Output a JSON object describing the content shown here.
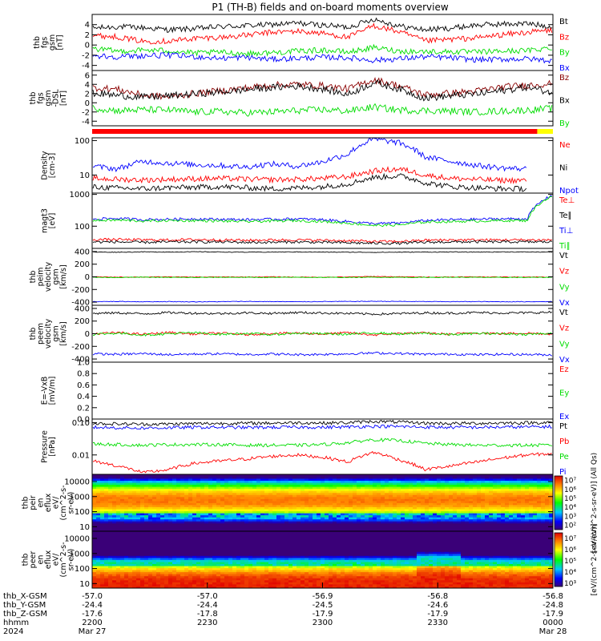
{
  "title": "P1 (TH-B) fields and on-board moments overview",
  "chart_data": [
    {
      "type": "line",
      "panel": "fgs",
      "ylabel": [
        "thb",
        "fgs",
        "gsm",
        "[nT]"
      ],
      "ylim": [
        -5,
        6
      ],
      "ticks": [
        "4",
        "2",
        "0",
        "-2",
        "-4"
      ],
      "tick_values": [
        4,
        2,
        0,
        -2,
        -4
      ],
      "series": [
        {
          "name": "Bt",
          "color": "#000000",
          "values": [
            3.3,
            3.6,
            3.4,
            3.0,
            3.2,
            3.6,
            3.8,
            4.0,
            4.3,
            3.9,
            3.5,
            5.1,
            3.7,
            3.0,
            3.3,
            3.9,
            4.1,
            4.2,
            3.6
          ]
        },
        {
          "name": "Bz",
          "color": "#ff0000",
          "values": [
            1.9,
            1.6,
            0.7,
            0.8,
            1.3,
            1.5,
            1.9,
            2.5,
            2.7,
            2.3,
            1.5,
            3.8,
            2.6,
            0.8,
            1.1,
            1.4,
            2.0,
            2.5,
            2.9
          ]
        },
        {
          "name": "By",
          "color": "#00dd00",
          "values": [
            -0.7,
            -1.2,
            -1.0,
            -1.1,
            -1.6,
            -1.4,
            -1.7,
            -1.5,
            -1.2,
            -1.0,
            -1.4,
            -0.5,
            -1.2,
            -1.3,
            -1.3,
            -1.4,
            -1.2,
            -1.1,
            -0.5
          ]
        },
        {
          "name": "Bx",
          "color": "#0000ff",
          "values": [
            -2.1,
            -2.3,
            -2.1,
            -2.0,
            -2.3,
            -2.6,
            -2.4,
            -2.8,
            -2.6,
            -2.4,
            -2.5,
            -3.0,
            -2.7,
            -2.3,
            -2.5,
            -2.9,
            -2.8,
            -2.7,
            -3.1
          ]
        }
      ]
    },
    {
      "type": "line",
      "panel": "fgs-dsl",
      "ylabel": [
        "thb",
        "fgs",
        "gsm",
        "-DSL",
        "[nT]"
      ],
      "ylim": [
        -5,
        7
      ],
      "ticks": [
        "6",
        "4",
        "2",
        "0",
        "-2",
        "-4"
      ],
      "tick_values": [
        6,
        4,
        2,
        0,
        -2,
        -4
      ],
      "series": [
        {
          "name": "Bz",
          "color": "#8b0000",
          "values": [
            3.3,
            2.9,
            1.6,
            1.3,
            2.0,
            2.6,
            3.2,
            3.8,
            4.0,
            3.7,
            3.0,
            5.0,
            3.7,
            1.7,
            2.1,
            2.5,
            3.4,
            3.8,
            4.2
          ]
        },
        {
          "name": "Bx",
          "color": "#000000",
          "values": [
            2.1,
            1.6,
            1.2,
            1.5,
            1.9,
            2.3,
            2.8,
            3.3,
            3.6,
            3.0,
            1.8,
            4.4,
            3.0,
            1.0,
            1.5,
            1.9,
            2.6,
            3.4,
            2.2
          ]
        },
        {
          "name": "By",
          "color": "#00dd00",
          "values": [
            -1.1,
            -1.7,
            -1.5,
            -1.6,
            -2.0,
            -1.9,
            -2.2,
            -2.0,
            -1.7,
            -1.5,
            -1.8,
            -0.9,
            -1.6,
            -1.7,
            -1.8,
            -2.0,
            -1.8,
            -1.6,
            -1.2
          ]
        }
      ]
    },
    {
      "type": "line",
      "panel": "density",
      "ylabel": [
        "Density",
        "[cm-3]"
      ],
      "scale": "log",
      "ylim": [
        3,
        120
      ],
      "ticks": [
        "100",
        "10"
      ],
      "tick_values": [
        100,
        10
      ],
      "series": [
        {
          "name": "Ne",
          "color": "#ff0000",
          "values": [
            8.0,
            7.5,
            7.2,
            7.5,
            7.8,
            8.0,
            7.6,
            7.3,
            7.5,
            8.0,
            9.0,
            13.0,
            15.0,
            10.0,
            8.0,
            7.5,
            7.0,
            7.0,
            null
          ]
        },
        {
          "name": "Ni",
          "color": "#000000",
          "values": [
            4.5,
            4.2,
            4.0,
            4.3,
            4.4,
            4.6,
            4.3,
            4.0,
            4.2,
            4.6,
            5.5,
            8.5,
            9.5,
            6.0,
            4.6,
            4.3,
            4.0,
            4.0,
            null
          ]
        },
        {
          "name": "Npot",
          "color": "#0000ff",
          "values": [
            18,
            15,
            25,
            22,
            20,
            19,
            17,
            21,
            18,
            24,
            40,
            110,
            85,
            33,
            25,
            19,
            16,
            15,
            null
          ]
        }
      ]
    },
    {
      "type": "line",
      "panel": "temperature",
      "ylabel": [
        "magt3",
        "[eV]"
      ],
      "scale": "log",
      "ylim": [
        20,
        1100
      ],
      "ticks": [
        "1000",
        "100"
      ],
      "tick_values": [
        1000,
        100
      ],
      "series": [
        {
          "name": "Te⊥",
          "color": "#ff0000",
          "values": [
            38,
            38,
            37,
            37,
            38,
            37,
            36,
            37,
            37,
            36,
            35,
            33,
            33,
            36,
            37,
            37,
            37,
            37,
            37
          ]
        },
        {
          "name": "Te∥",
          "color": "#000000",
          "values": [
            32,
            32,
            31,
            32,
            32,
            32,
            31,
            31,
            32,
            31,
            30,
            29,
            29,
            31,
            32,
            32,
            32,
            32,
            32
          ]
        },
        {
          "name": "Ti⊥",
          "color": "#0000ff",
          "values": [
            170,
            175,
            160,
            165,
            170,
            165,
            160,
            165,
            170,
            160,
            140,
            120,
            125,
            150,
            160,
            165,
            170,
            170,
            950
          ]
        },
        {
          "name": "Ti∥",
          "color": "#00dd00",
          "values": [
            150,
            155,
            145,
            150,
            150,
            145,
            140,
            145,
            150,
            140,
            125,
            105,
            110,
            135,
            140,
            145,
            150,
            150,
            900
          ]
        }
      ]
    },
    {
      "type": "line",
      "panel": "peim",
      "ylabel": [
        "thb",
        "peim",
        "velocity",
        "gsm",
        "[km/s]"
      ],
      "ylim": [
        -450,
        450
      ],
      "ticks": [
        "400",
        "200",
        "0",
        "-200",
        "-400"
      ],
      "tick_values": [
        400,
        200,
        0,
        -200,
        -400
      ],
      "series": [
        {
          "name": "Vt",
          "color": "#000000",
          "values": [
            392,
            390,
            395,
            392,
            396,
            393,
            390,
            392,
            394,
            391,
            390,
            388,
            390,
            392,
            393,
            392,
            394,
            393,
            392
          ]
        },
        {
          "name": "Vz",
          "color": "#ff0000",
          "values": [
            0,
            -5,
            -3,
            0,
            -4,
            -2,
            -3,
            0,
            -4,
            -6,
            -2,
            5,
            0,
            -3,
            -2,
            0,
            -3,
            -2,
            -4
          ]
        },
        {
          "name": "Vy",
          "color": "#00dd00",
          "values": [
            -8,
            -10,
            -6,
            -9,
            -11,
            -7,
            -8,
            -10,
            -7,
            -9,
            -10,
            -6,
            -8,
            -9,
            -7,
            -8,
            -10,
            -9,
            -8
          ]
        },
        {
          "name": "Vx",
          "color": "#0000ff",
          "values": [
            -392,
            -390,
            -394,
            -392,
            -395,
            -393,
            -389,
            -392,
            -394,
            -391,
            -390,
            -387,
            -389,
            -392,
            -393,
            -392,
            -394,
            -393,
            -391
          ]
        }
      ]
    },
    {
      "type": "line",
      "panel": "peem",
      "ylabel": [
        "thb",
        "peem",
        "velocity",
        "gsm",
        "[km/s]"
      ],
      "ylim": [
        -450,
        450
      ],
      "ticks": [
        "400",
        "200",
        "0",
        "-200",
        "-400"
      ],
      "tick_values": [
        400,
        200,
        0,
        -200,
        -400
      ],
      "series": [
        {
          "name": "Vt",
          "color": "#000000",
          "values": [
            320,
            330,
            315,
            335,
            325,
            318,
            330,
            322,
            335,
            328,
            320,
            310,
            318,
            330,
            325,
            335,
            328,
            330,
            340
          ]
        },
        {
          "name": "Vz",
          "color": "#ff0000",
          "values": [
            0,
            15,
            -10,
            20,
            -5,
            10,
            -15,
            5,
            10,
            -5,
            15,
            -20,
            5,
            10,
            -10,
            15,
            0,
            10,
            -5
          ]
        },
        {
          "name": "Vy",
          "color": "#00dd00",
          "values": [
            -10,
            10,
            -20,
            0,
            15,
            -10,
            5,
            -15,
            10,
            0,
            -10,
            15,
            -5,
            10,
            -15,
            5,
            0,
            -10,
            10
          ]
        },
        {
          "name": "Vx",
          "color": "#0000ff",
          "values": [
            -320,
            -325,
            -315,
            -330,
            -322,
            -318,
            -328,
            -320,
            -332,
            -326,
            -318,
            -305,
            -312,
            -326,
            -322,
            -332,
            -325,
            -328,
            -336
          ]
        }
      ]
    },
    {
      "type": "line",
      "panel": "efield",
      "ylabel": [
        "E=-VxB",
        "[mV/m]"
      ],
      "ylim": [
        0,
        1
      ],
      "ticks": [
        "1.0",
        "0.8",
        "0.6",
        "0.4",
        "0.2",
        "0.0"
      ],
      "tick_values": [
        1.0,
        0.8,
        0.6,
        0.4,
        0.2,
        0.0
      ],
      "series": [
        {
          "name": "Ez",
          "color": "#ff0000",
          "values": []
        },
        {
          "name": "Ey",
          "color": "#00dd00",
          "values": []
        },
        {
          "name": "Ex",
          "color": "#0000ff",
          "values": []
        }
      ]
    },
    {
      "type": "line",
      "panel": "pressure",
      "ylabel": [
        "Pressure",
        "[nPa]"
      ],
      "scale": "log",
      "ylim": [
        0.0025,
        0.13
      ],
      "ticks": [
        "0.10",
        "0.01"
      ],
      "tick_values": [
        0.1,
        0.01
      ],
      "series": [
        {
          "name": "Pt",
          "color": "#000000",
          "values": [
            0.095,
            0.092,
            0.09,
            0.091,
            0.094,
            0.095,
            0.096,
            0.098,
            0.1,
            0.098,
            0.1,
            0.11,
            0.105,
            0.097,
            0.095,
            0.096,
            0.098,
            0.1,
            0.102
          ]
        },
        {
          "name": "Pb",
          "color": "#ff0000",
          "values": [
            0.0065,
            0.0045,
            0.0028,
            0.0035,
            0.0055,
            0.0065,
            0.0075,
            0.009,
            0.01,
            0.0085,
            0.006,
            0.012,
            0.007,
            0.0035,
            0.0045,
            0.006,
            0.008,
            0.01,
            0.011
          ]
        },
        {
          "name": "Pe",
          "color": "#00dd00",
          "values": [
            0.022,
            0.021,
            0.02,
            0.021,
            0.021,
            0.021,
            0.02,
            0.02,
            0.02,
            0.021,
            0.024,
            0.03,
            0.028,
            0.023,
            0.021,
            0.02,
            0.02,
            0.02,
            0.02
          ]
        },
        {
          "name": "Pi",
          "color": "#0000ff",
          "values": [
            0.072,
            0.07,
            0.068,
            0.07,
            0.072,
            0.072,
            0.071,
            0.072,
            0.073,
            0.072,
            0.074,
            0.078,
            0.076,
            0.073,
            0.072,
            0.072,
            0.073,
            0.074,
            0.076
          ]
        }
      ]
    },
    {
      "type": "heatmap",
      "panel": "peir",
      "ylabel": [
        "thb",
        "peir",
        "en",
        "eflux",
        "eV/",
        "(cm^2-s-",
        "sr-eV)"
      ],
      "scale": "log",
      "ylim": [
        5,
        30000
      ],
      "ticks": [
        "10000",
        "1000",
        "100",
        "10"
      ],
      "tick_values": [
        10000,
        1000,
        100,
        10
      ],
      "colorbar": {
        "label": "[eV/(cm^2-s-sr-eV)] (All Qs)",
        "ticks": [
          "10⁷",
          "10⁶",
          "10⁵",
          "10⁴",
          "10³",
          "10²"
        ],
        "range_exp": [
          1.5,
          7.5
        ]
      },
      "peak_energy_ev": 600,
      "band_core_exp": 6.6,
      "band_edge_exp": 4.8,
      "low_energy_exp": 2.5
    },
    {
      "type": "heatmap",
      "panel": "peer",
      "ylabel": [
        "thb",
        "peer",
        "en",
        "eflux",
        "eV/",
        "(cm^2-s-",
        "sr-eV)"
      ],
      "scale": "log",
      "ylim": [
        5,
        30000
      ],
      "ticks": [
        "10000",
        "1000",
        "100",
        "10"
      ],
      "tick_values": [
        10000,
        1000,
        100,
        10
      ],
      "colorbar": {
        "label": "[eV/(cm^2-s-sr-eV)]",
        "ticks": [
          "10⁷",
          "10⁶",
          "10⁵",
          "10⁴",
          "10³"
        ],
        "range_exp": [
          2.7,
          7.5
        ]
      },
      "peak_energy_ev": 12,
      "band_core_exp": 7.3,
      "high_energy_exp": 4.1
    }
  ],
  "x_axis": {
    "rows": [
      {
        "label": "thb_X-GSM",
        "values": [
          "-57.0",
          "-57.0",
          "-56.9",
          "-56.8",
          "-56.8"
        ]
      },
      {
        "label": "thb_Y-GSM",
        "values": [
          "-24.4",
          "-24.4",
          "-24.5",
          "-24.6",
          "-24.8"
        ]
      },
      {
        "label": "thb_Z-GSM",
        "values": [
          "-17.6",
          "-17.8",
          "-17.9",
          "-17.9",
          "-17.9"
        ]
      },
      {
        "label": "hhmm",
        "values": [
          "2200",
          "2230",
          "2300",
          "2330",
          "0000"
        ]
      },
      {
        "label": "2024",
        "values": [
          "Mar 27",
          "",
          "",
          "",
          "Mar 28"
        ]
      }
    ]
  },
  "mode_bar": {
    "colors": [
      "#ff0000",
      "#ffff00"
    ],
    "split_fraction": 0.966
  }
}
